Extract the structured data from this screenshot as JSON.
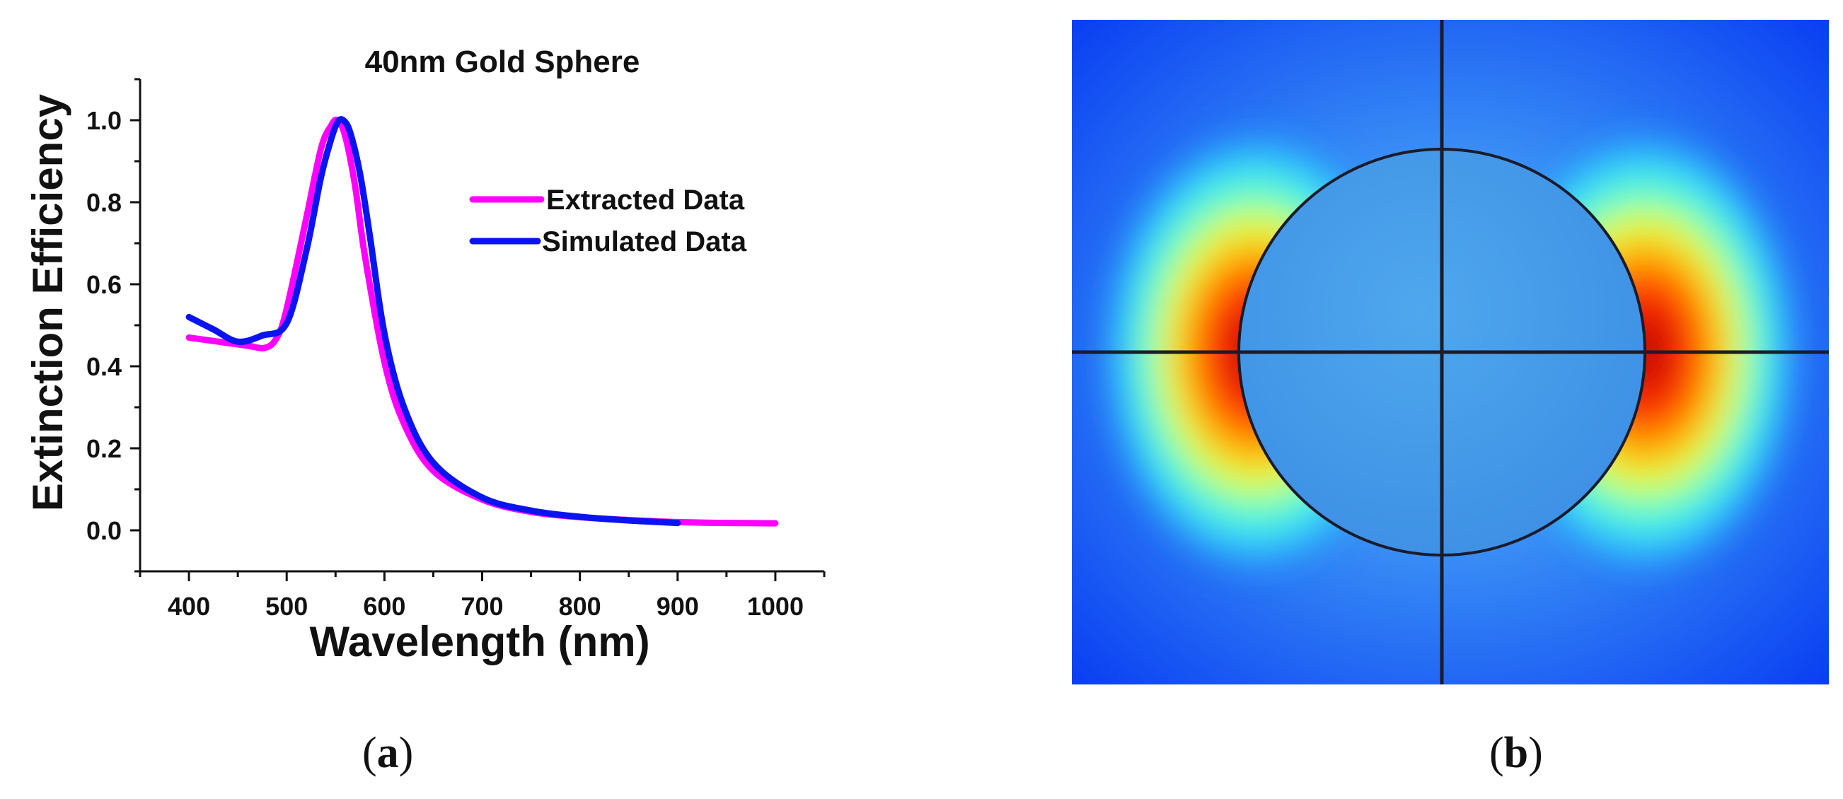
{
  "chart_data": {
    "type": "line",
    "title": "40nm Gold Sphere",
    "xlabel": "Wavelength (nm)",
    "ylabel": "Extinction Efficiency",
    "xlim": [
      350,
      1050
    ],
    "ylim": [
      -0.1,
      1.1
    ],
    "xticks": [
      400,
      500,
      600,
      700,
      800,
      900,
      1000
    ],
    "yticks": [
      0.0,
      0.2,
      0.4,
      0.6,
      0.8,
      1.0
    ],
    "xtick_labels": [
      "400",
      "500",
      "600",
      "700",
      "800",
      "900",
      "1000"
    ],
    "ytick_labels": [
      "0.0",
      "0.2",
      "0.4",
      "0.6",
      "0.8",
      "1.0"
    ],
    "legend_position": "right",
    "series": [
      {
        "name": "Extracted Data",
        "color": "#ff00ff",
        "x": [
          400,
          430,
          460,
          478,
          490,
          500,
          520,
          535,
          545,
          552,
          560,
          570,
          580,
          600,
          620,
          650,
          700,
          750,
          800,
          850,
          900,
          950,
          1000
        ],
        "y": [
          0.47,
          0.46,
          0.45,
          0.445,
          0.47,
          0.54,
          0.76,
          0.93,
          0.985,
          1.0,
          0.96,
          0.84,
          0.67,
          0.41,
          0.26,
          0.145,
          0.075,
          0.045,
          0.032,
          0.025,
          0.02,
          0.018,
          0.017
        ]
      },
      {
        "name": "Simulated Data",
        "color": "#0a14f0",
        "x": [
          400,
          425,
          450,
          475,
          500,
          520,
          535,
          545,
          552,
          558,
          565,
          575,
          585,
          600,
          620,
          650,
          700,
          750,
          800,
          850,
          900
        ],
        "y": [
          0.52,
          0.49,
          0.46,
          0.475,
          0.505,
          0.68,
          0.86,
          0.95,
          0.995,
          1.0,
          0.97,
          0.87,
          0.72,
          0.48,
          0.3,
          0.165,
          0.08,
          0.048,
          0.033,
          0.024,
          0.018
        ]
      }
    ]
  },
  "panels": {
    "a_label": "a",
    "b_label": "b"
  }
}
